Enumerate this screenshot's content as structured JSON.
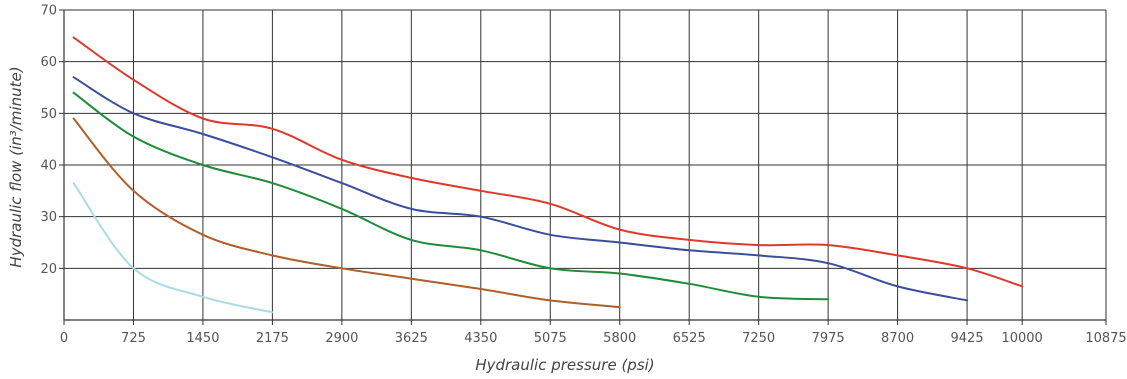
{
  "chart_data": {
    "type": "line",
    "title": "",
    "xlabel": "Hydraulic pressure (psi)",
    "ylabel": "Hydraulic flow (in³/minute)",
    "xlim": [
      0,
      10875
    ],
    "ylim": [
      10,
      70
    ],
    "x_ticks": [
      0,
      725,
      1450,
      2175,
      2900,
      3625,
      4350,
      5075,
      5800,
      6525,
      7250,
      7975,
      8700,
      9425,
      10000,
      10875
    ],
    "y_ticks": [
      20,
      30,
      40,
      50,
      60,
      70
    ],
    "grid": true,
    "legend": "none",
    "series": [
      {
        "color": "#e0392b",
        "points": [
          [
            100,
            64.7
          ],
          [
            725,
            56.5
          ],
          [
            1450,
            49
          ],
          [
            2175,
            47
          ],
          [
            2900,
            41
          ],
          [
            3625,
            37.5
          ],
          [
            4350,
            35
          ],
          [
            5075,
            32.5
          ],
          [
            5800,
            27.5
          ],
          [
            6525,
            25.5
          ],
          [
            7250,
            24.5
          ],
          [
            7975,
            24.5
          ],
          [
            8700,
            22.5
          ],
          [
            9425,
            20
          ],
          [
            10000,
            16.5
          ]
        ]
      },
      {
        "color": "#3a4e9c",
        "points": [
          [
            100,
            57
          ],
          [
            725,
            50
          ],
          [
            1450,
            46
          ],
          [
            2175,
            41.5
          ],
          [
            2900,
            36.5
          ],
          [
            3625,
            31.5
          ],
          [
            4350,
            30
          ],
          [
            5075,
            26.5
          ],
          [
            5800,
            25
          ],
          [
            6525,
            23.5
          ],
          [
            7250,
            22.5
          ],
          [
            7975,
            21
          ],
          [
            8700,
            16.5
          ],
          [
            9425,
            13.8
          ]
        ]
      },
      {
        "color": "#1e8c3a",
        "points": [
          [
            100,
            54
          ],
          [
            725,
            45.5
          ],
          [
            1450,
            40
          ],
          [
            2175,
            36.5
          ],
          [
            2900,
            31.5
          ],
          [
            3625,
            25.5
          ],
          [
            4350,
            23.5
          ],
          [
            5075,
            20
          ],
          [
            5800,
            19
          ],
          [
            6525,
            17
          ],
          [
            7250,
            14.5
          ],
          [
            7975,
            14
          ]
        ]
      },
      {
        "color": "#b05f2a",
        "points": [
          [
            100,
            49
          ],
          [
            725,
            35
          ],
          [
            1450,
            26.5
          ],
          [
            2175,
            22.5
          ],
          [
            2900,
            20
          ],
          [
            3625,
            18
          ],
          [
            4350,
            16
          ],
          [
            5075,
            13.8
          ],
          [
            5800,
            12.5
          ]
        ]
      },
      {
        "color": "#a8dce6",
        "points": [
          [
            100,
            36.5
          ],
          [
            725,
            20
          ],
          [
            1450,
            14.5
          ],
          [
            2175,
            11.5
          ]
        ]
      }
    ]
  }
}
